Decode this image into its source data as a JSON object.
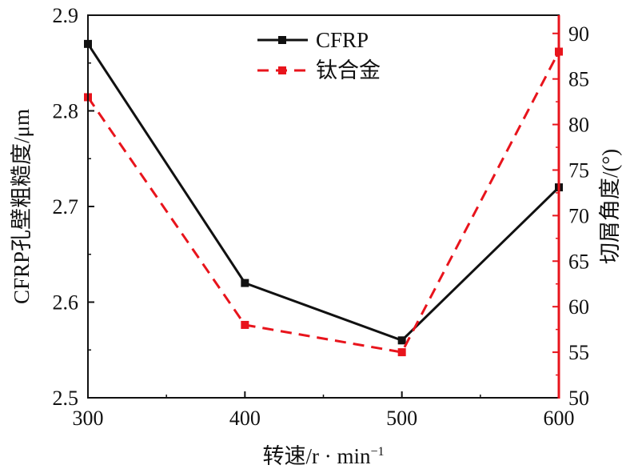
{
  "chart_data": {
    "type": "line",
    "x": [
      300,
      400,
      500,
      600
    ],
    "xlim": [
      300,
      600
    ],
    "x_ticks": [
      300,
      400,
      500,
      600
    ],
    "xlabel": "转速/r · min",
    "xlabel_sup": "−1",
    "y_left": {
      "label": "CFRP孔壁粗糙度/μm",
      "lim": [
        2.5,
        2.9
      ],
      "ticks": [
        "2.5",
        "2.6",
        "2.7",
        "2.8",
        "2.9"
      ]
    },
    "y_right": {
      "label": "切屑角度/(°)",
      "lim": [
        50,
        92
      ],
      "ticks": [
        "50",
        "55",
        "60",
        "65",
        "70",
        "75",
        "80",
        "85",
        "90"
      ],
      "color": "#e8141c"
    },
    "series": [
      {
        "name": "CFRP",
        "axis": "left",
        "values": [
          2.87,
          2.62,
          2.56,
          2.72
        ],
        "color": "#111111",
        "style": "solid",
        "marker": "square"
      },
      {
        "name": "钛合金",
        "axis": "right",
        "values": [
          83,
          58,
          55,
          88
        ],
        "color": "#e8141c",
        "style": "dashed",
        "marker": "square"
      }
    ],
    "legend_position": "top-center",
    "grid": false
  }
}
